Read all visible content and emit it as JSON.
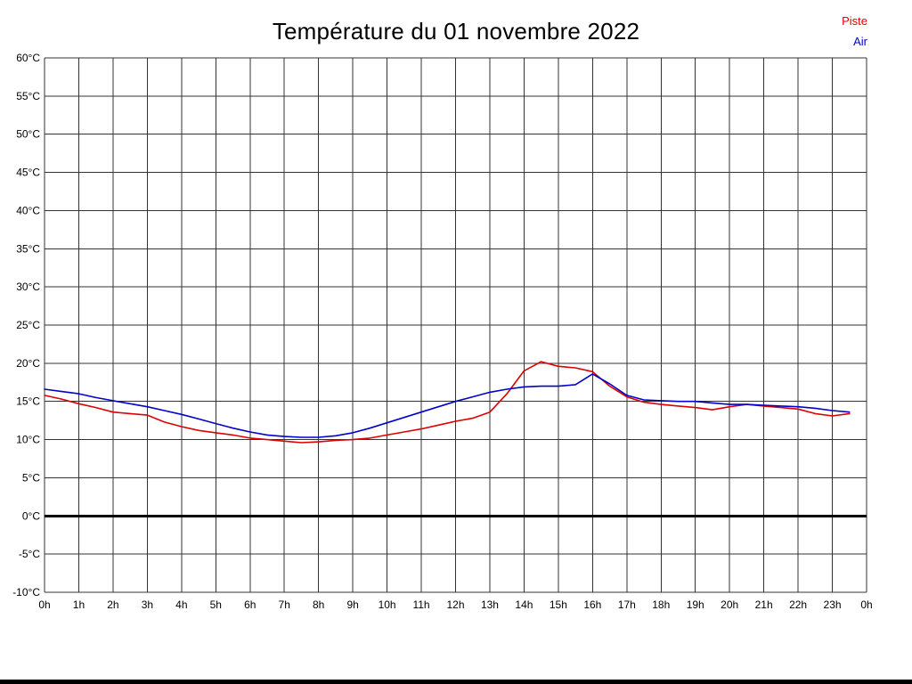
{
  "title": "Température du 01 novembre 2022",
  "legend": [
    {
      "label": "Piste",
      "color": "#dd0000"
    },
    {
      "label": "Air",
      "color": "#0000cc"
    }
  ],
  "chart_data": {
    "type": "line",
    "title": "Température du 01 novembre 2022",
    "xlabel": "",
    "ylabel": "°C",
    "xlim": [
      0,
      24
    ],
    "ylim": [
      -10,
      60
    ],
    "grid": true,
    "grid_color": "#333333",
    "zero_line": {
      "value": 0,
      "color": "#000000",
      "width": 3
    },
    "legend_position": "top-right",
    "x_ticks": [
      {
        "value": 0,
        "label": "0h"
      },
      {
        "value": 1,
        "label": "1h"
      },
      {
        "value": 2,
        "label": "2h"
      },
      {
        "value": 3,
        "label": "3h"
      },
      {
        "value": 4,
        "label": "4h"
      },
      {
        "value": 5,
        "label": "5h"
      },
      {
        "value": 6,
        "label": "6h"
      },
      {
        "value": 7,
        "label": "7h"
      },
      {
        "value": 8,
        "label": "8h"
      },
      {
        "value": 9,
        "label": "9h"
      },
      {
        "value": 10,
        "label": "10h"
      },
      {
        "value": 11,
        "label": "11h"
      },
      {
        "value": 12,
        "label": "12h"
      },
      {
        "value": 13,
        "label": "13h"
      },
      {
        "value": 14,
        "label": "14h"
      },
      {
        "value": 15,
        "label": "15h"
      },
      {
        "value": 16,
        "label": "16h"
      },
      {
        "value": 17,
        "label": "17h"
      },
      {
        "value": 18,
        "label": "18h"
      },
      {
        "value": 19,
        "label": "19h"
      },
      {
        "value": 20,
        "label": "20h"
      },
      {
        "value": 21,
        "label": "21h"
      },
      {
        "value": 22,
        "label": "22h"
      },
      {
        "value": 23,
        "label": "23h"
      },
      {
        "value": 24,
        "label": "0h"
      }
    ],
    "y_ticks": [
      {
        "value": 60,
        "label": "60°C"
      },
      {
        "value": 55,
        "label": "55°C"
      },
      {
        "value": 50,
        "label": "50°C"
      },
      {
        "value": 45,
        "label": "45°C"
      },
      {
        "value": 40,
        "label": "40°C"
      },
      {
        "value": 35,
        "label": "35°C"
      },
      {
        "value": 30,
        "label": "30°C"
      },
      {
        "value": 25,
        "label": "25°C"
      },
      {
        "value": 20,
        "label": "20°C"
      },
      {
        "value": 15,
        "label": "15°C"
      },
      {
        "value": 10,
        "label": "10°C"
      },
      {
        "value": 5,
        "label": "5°C"
      },
      {
        "value": 0,
        "label": "0°C"
      },
      {
        "value": -5,
        "label": "-5°C"
      },
      {
        "value": -10,
        "label": "-10°C"
      }
    ],
    "series": [
      {
        "name": "Piste",
        "color": "#dd0000",
        "x": [
          0,
          0.5,
          1,
          1.5,
          2,
          2.5,
          3,
          3.5,
          4,
          4.5,
          5,
          5.5,
          6,
          6.5,
          7,
          7.5,
          8,
          8.5,
          9,
          9.5,
          10,
          10.5,
          11,
          11.5,
          12,
          12.5,
          13,
          13.5,
          14,
          14.5,
          15,
          15.5,
          16,
          16.5,
          17,
          17.5,
          18,
          18.5,
          19,
          19.5,
          20,
          20.5,
          21,
          21.5,
          22,
          22.5,
          23,
          23.5
        ],
        "values": [
          15.8,
          15.3,
          14.7,
          14.2,
          13.6,
          13.4,
          13.2,
          12.3,
          11.7,
          11.2,
          10.9,
          10.6,
          10.2,
          10.0,
          9.8,
          9.6,
          9.7,
          9.9,
          10.0,
          10.2,
          10.6,
          11.0,
          11.4,
          11.9,
          12.4,
          12.8,
          13.6,
          16.0,
          19.0,
          20.2,
          19.6,
          19.4,
          18.9,
          17.0,
          15.6,
          14.9,
          14.6,
          14.4,
          14.2,
          13.9,
          14.3,
          14.6,
          14.4,
          14.2,
          14.0,
          13.4,
          13.1,
          13.4
        ]
      },
      {
        "name": "Air",
        "color": "#0000cc",
        "x": [
          0,
          0.5,
          1,
          1.5,
          2,
          2.5,
          3,
          3.5,
          4,
          4.5,
          5,
          5.5,
          6,
          6.5,
          7,
          7.5,
          8,
          8.5,
          9,
          9.5,
          10,
          10.5,
          11,
          11.5,
          12,
          12.5,
          13,
          13.5,
          14,
          14.5,
          15,
          15.5,
          16,
          16.5,
          17,
          17.5,
          18,
          18.5,
          19,
          19.5,
          20,
          20.5,
          21,
          21.5,
          22,
          22.5,
          23,
          23.5
        ],
        "values": [
          16.6,
          16.3,
          16.0,
          15.5,
          15.1,
          14.7,
          14.3,
          13.8,
          13.3,
          12.7,
          12.1,
          11.5,
          11.0,
          10.6,
          10.4,
          10.3,
          10.3,
          10.5,
          10.9,
          11.5,
          12.2,
          12.9,
          13.6,
          14.3,
          15.0,
          15.6,
          16.2,
          16.6,
          16.9,
          17.0,
          17.0,
          17.2,
          18.6,
          17.3,
          15.8,
          15.2,
          15.1,
          15.0,
          15.0,
          14.8,
          14.6,
          14.6,
          14.5,
          14.4,
          14.3,
          14.1,
          13.8,
          13.6
        ]
      }
    ]
  }
}
